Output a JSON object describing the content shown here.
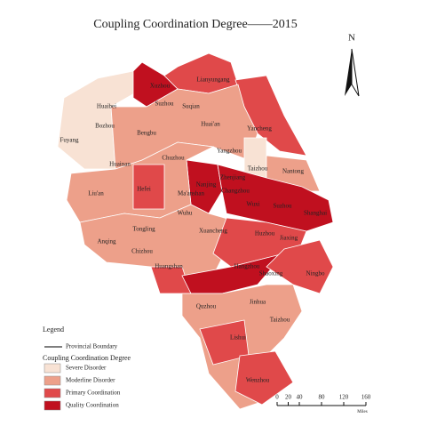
{
  "title": "Coupling Coordination Degree——2015",
  "north_label": "N",
  "cities": [
    "Xuzhou",
    "Lianyungang",
    "Huaibei",
    "Suzhou",
    "Suqian",
    "Bozhou",
    "Bengbu",
    "Huai'an",
    "Yancheng",
    "Fuyang",
    "Huainan",
    "Chuzhou",
    "Yangzhou",
    "Taizhou",
    "Nantong",
    "Zhenjiang",
    "Nanjing",
    "Hefei",
    "Liu'an",
    "Ma'anshan",
    "Changzhou",
    "Wuxi",
    "Suzhou",
    "Shanghai",
    "Wuhu",
    "Tongling",
    "Xuancheng",
    "Huzhou",
    "Jiaxing",
    "Anqing",
    "Chizhou",
    "Huangshan",
    "Hangzhou",
    "Shaoxing",
    "Ningbo",
    "Quzhou",
    "Jinhua",
    "Taizhou",
    "Lishui",
    "Wenzhou"
  ],
  "legend": {
    "title": "Legend",
    "boundary": "Provincial Boundary",
    "subtitle": "Coupling Coordination Degree",
    "items": [
      {
        "label": "Severe Disorder",
        "color": "#f8e2d4"
      },
      {
        "label": "Moderline Disorder",
        "color": "#eda08a"
      },
      {
        "label": "Primary Coordination",
        "color": "#e0494a"
      },
      {
        "label": "Quality Coordination",
        "color": "#c0101f"
      }
    ]
  },
  "scale_bar": {
    "ticks": [
      0,
      20,
      40,
      80,
      120,
      160
    ],
    "unit": "Miles"
  }
}
